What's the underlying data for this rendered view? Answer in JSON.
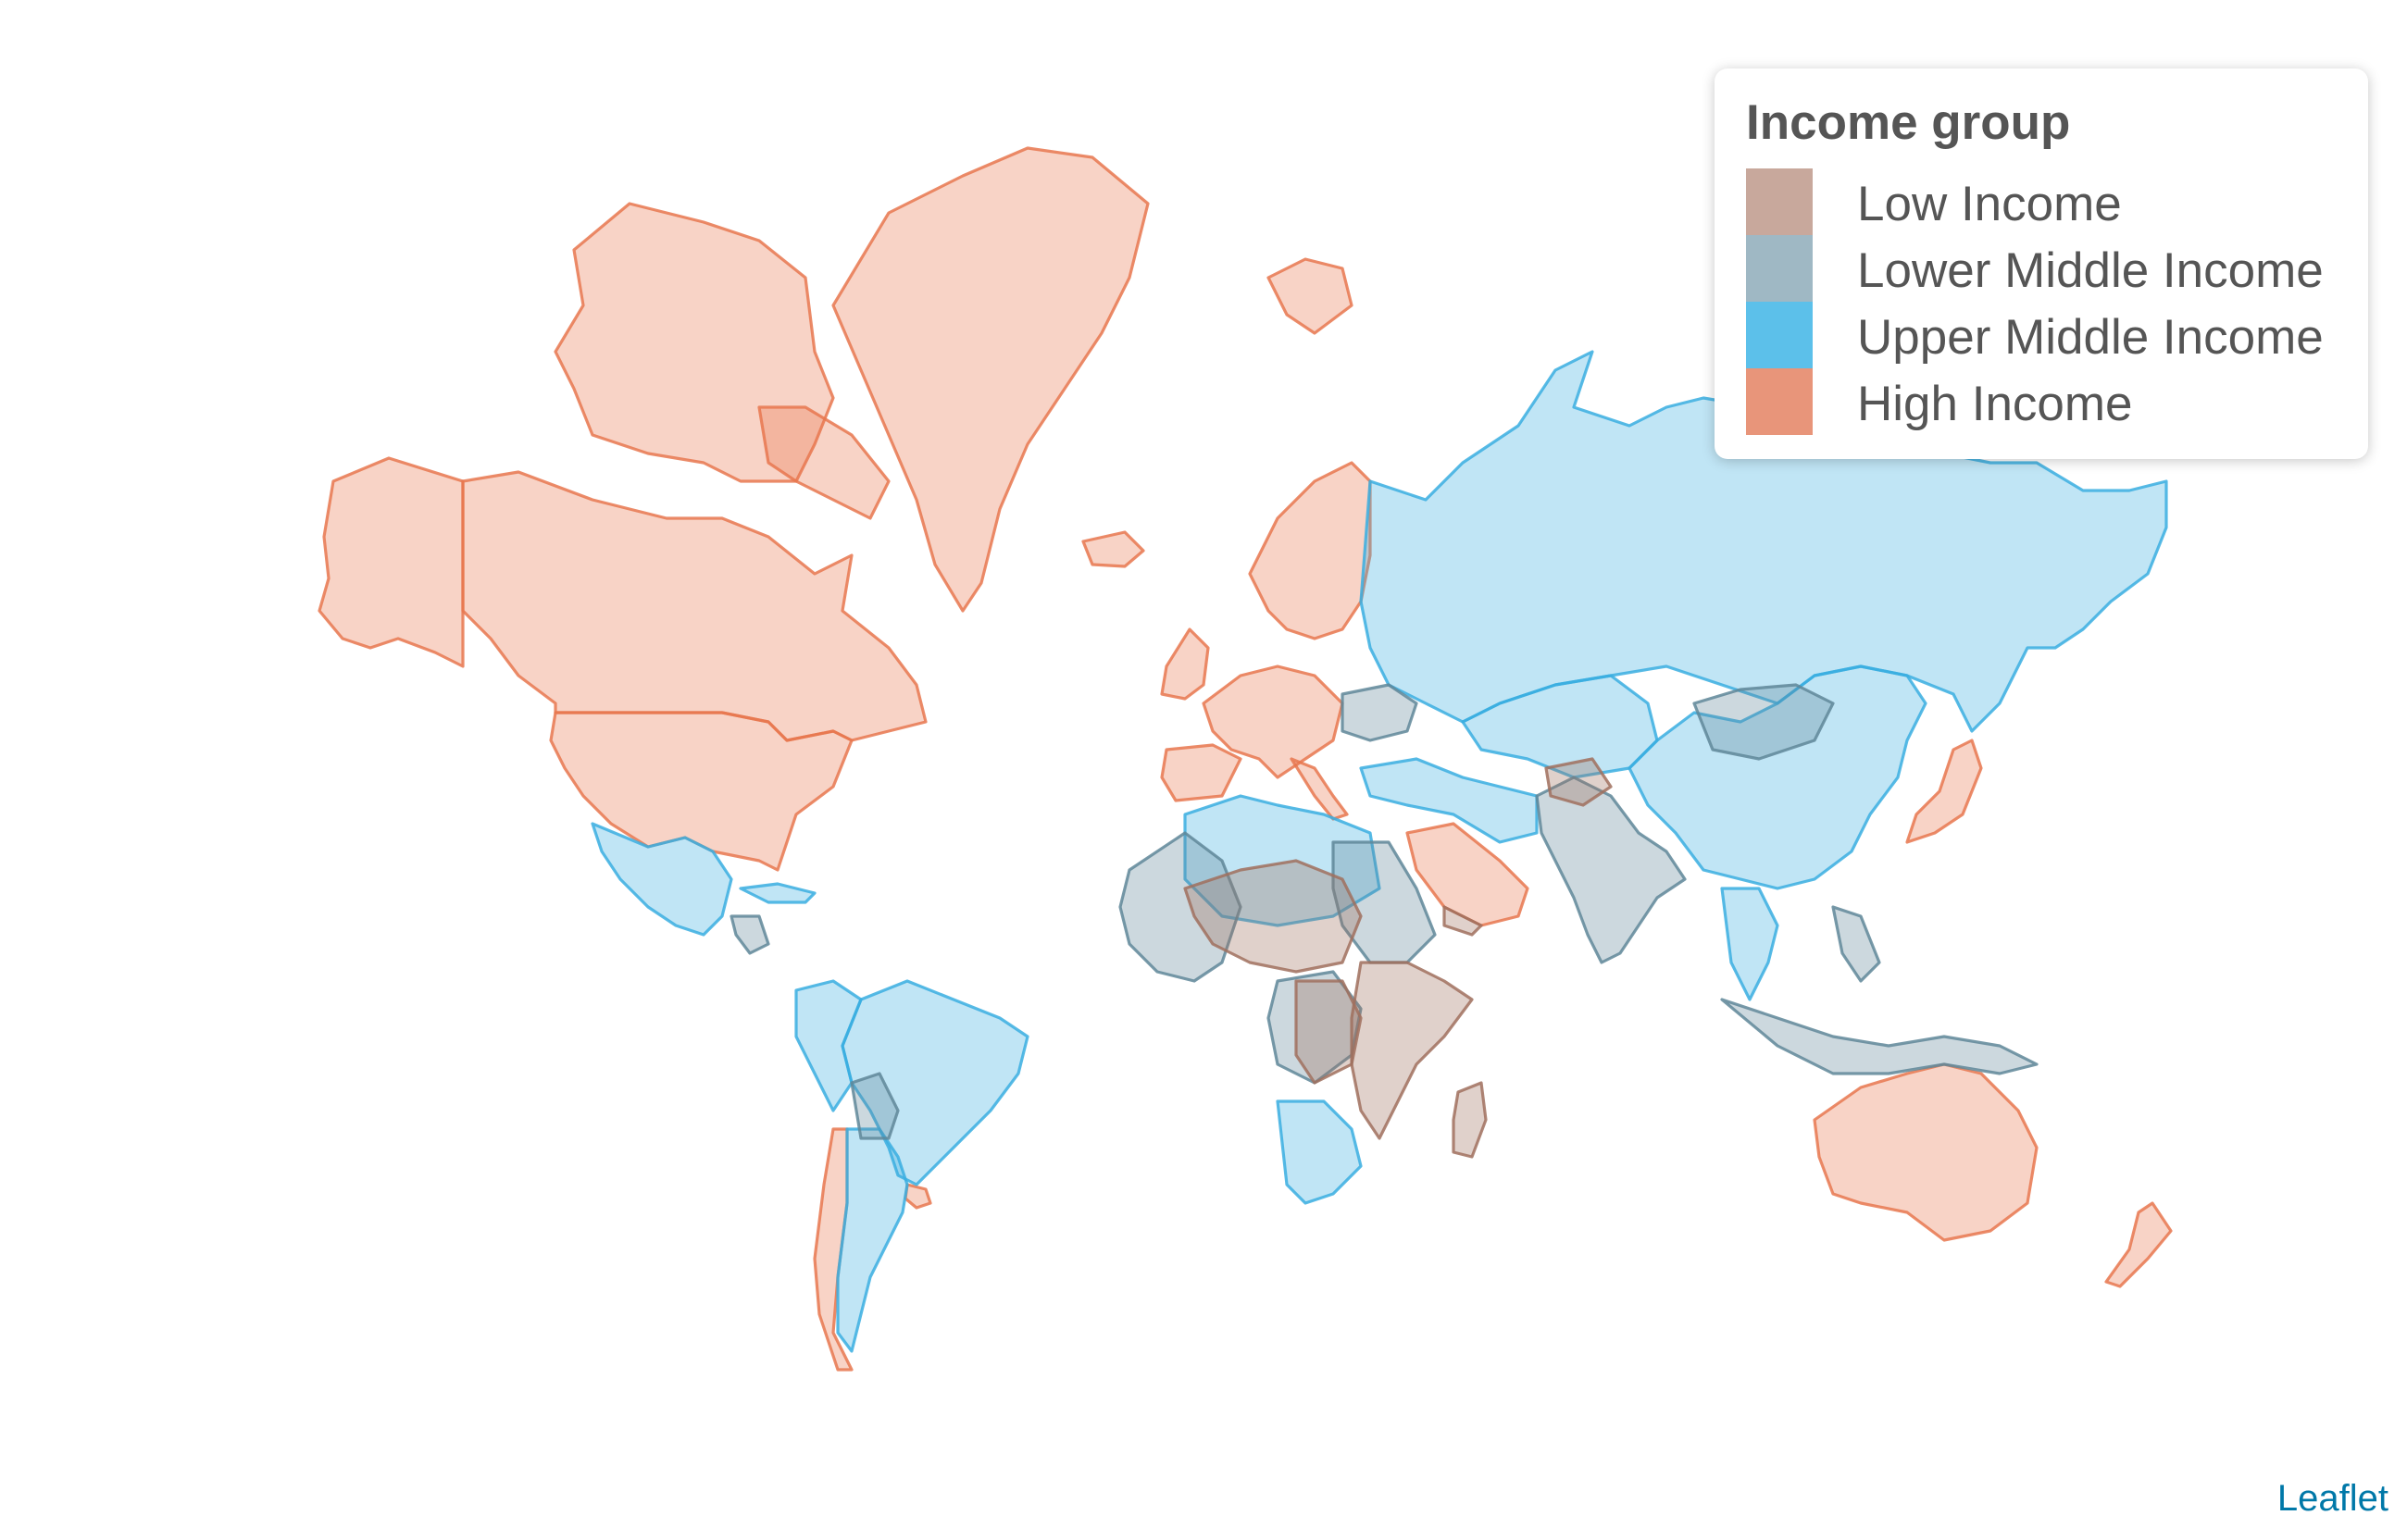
{
  "legend": {
    "title": "Income group",
    "items": [
      {
        "label": "Low Income",
        "color": "#c8a89c"
      },
      {
        "label": "Lower Middle Income",
        "color": "#9fb8c4"
      },
      {
        "label": "Upper Middle Income",
        "color": "#5cc0ea"
      },
      {
        "label": "High Income",
        "color": "#e8957a"
      }
    ]
  },
  "colors": {
    "low": "#a0705e",
    "lower_middle": "#5f8799",
    "upper_middle": "#3aaee0",
    "high": "#e8774f"
  },
  "attribution": "Leaflet"
}
